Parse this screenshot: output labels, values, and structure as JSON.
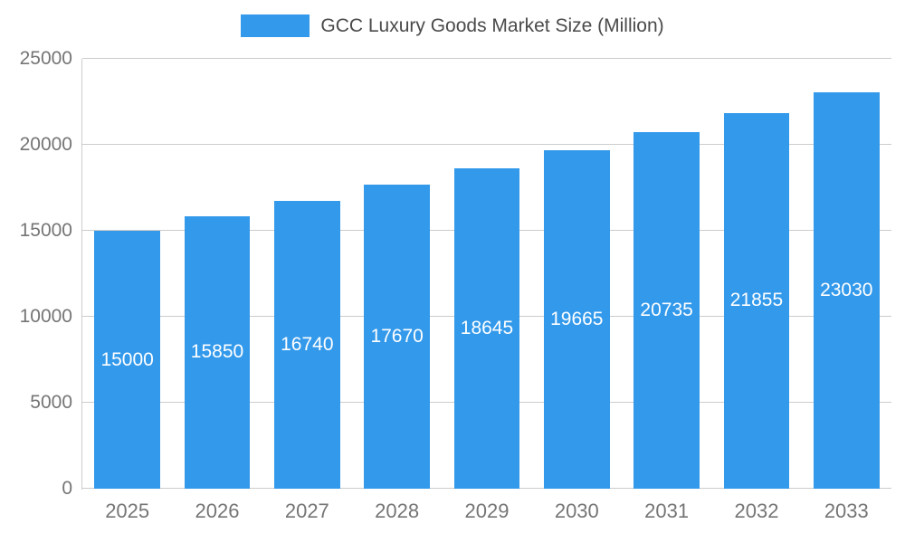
{
  "legend": {
    "label": "GCC Luxury Goods Market Size (Million)"
  },
  "chart_data": {
    "type": "bar",
    "title": "GCC Luxury Goods Market Size (Million)",
    "categories": [
      "2025",
      "2026",
      "2027",
      "2028",
      "2029",
      "2030",
      "2031",
      "2032",
      "2033"
    ],
    "values": [
      15000,
      15850,
      16740,
      17670,
      18645,
      19665,
      20735,
      21855,
      23030
    ],
    "xlabel": "",
    "ylabel": "",
    "ylim": [
      0,
      25000
    ],
    "yticks": [
      0,
      5000,
      10000,
      15000,
      20000,
      25000
    ],
    "grid": true,
    "legend_position": "top",
    "bar_color": "#3399EB",
    "value_label_color": "#ffffff",
    "axis_label_color": "#757575"
  }
}
